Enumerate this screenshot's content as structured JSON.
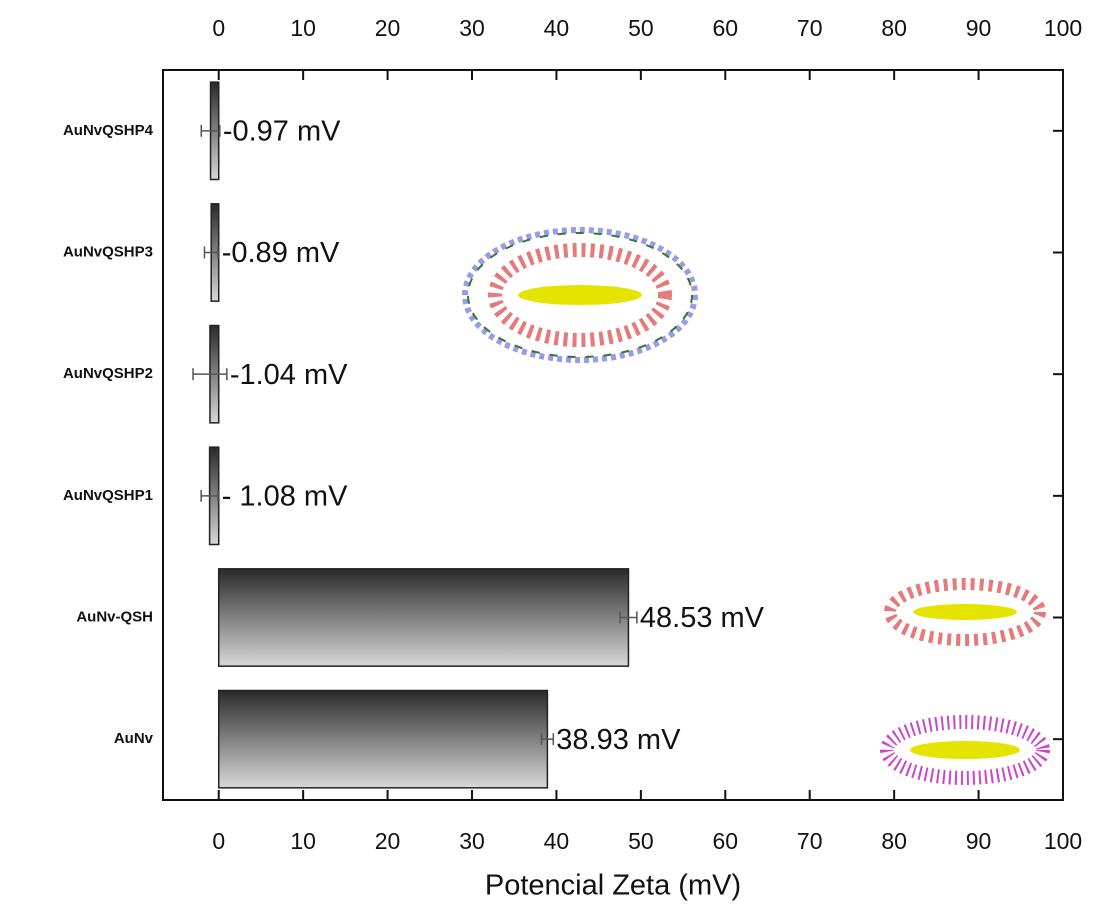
{
  "chart_data": {
    "type": "barh",
    "xlabel": "Potencial Zeta (mV)",
    "categories": [
      "AuNvQSHP4",
      "AuNvQSHP3",
      "AuNvQSHP2",
      "AuNvQSHP1",
      "AuNv-QSH",
      "AuNv"
    ],
    "values": [
      -0.97,
      -0.89,
      -1.04,
      -1.08,
      48.53,
      38.93
    ],
    "errors": [
      1.1,
      0.8,
      2.0,
      1.0,
      1.0,
      0.7
    ],
    "value_labels": [
      "-0.97 mV",
      "-0.89 mV",
      "-1.04 mV",
      "- 1.08 mV",
      "48.53 mV",
      "38.93 mV"
    ],
    "xlim": [
      -6.6,
      100
    ],
    "xticks": [
      0,
      10,
      20,
      30,
      40,
      50,
      60,
      70,
      80,
      90,
      100
    ],
    "color": "#222222"
  }
}
